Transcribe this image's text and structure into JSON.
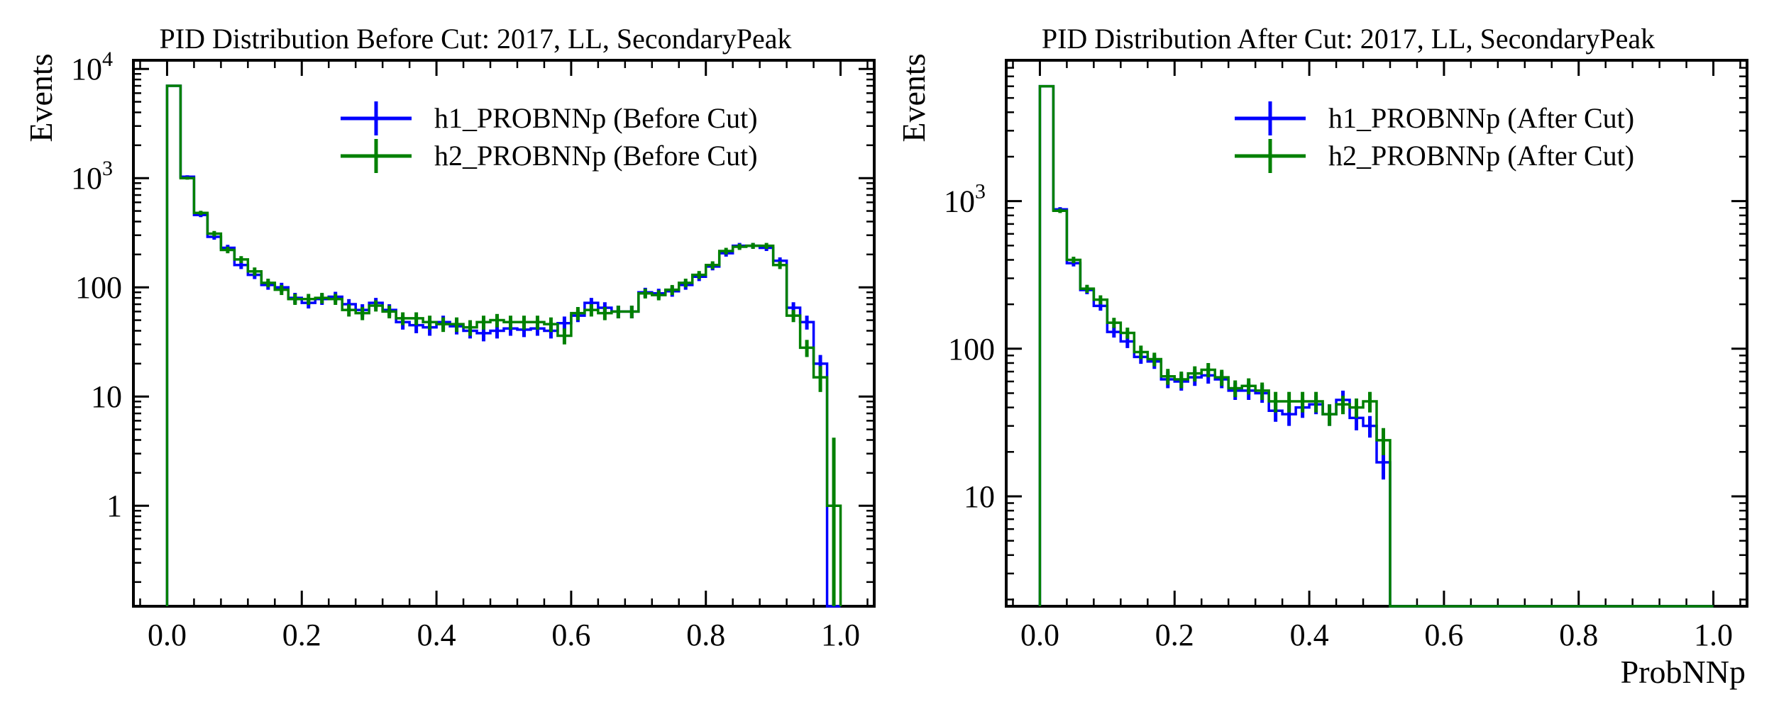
{
  "figure": {
    "panels": [
      "left",
      "right"
    ]
  },
  "colors": {
    "h1": "#0000ff",
    "h2": "#008000",
    "axes": "#000000"
  },
  "chart_data": [
    {
      "type": "line",
      "style": "step-histogram-with-errorbars",
      "title": "PID Distribution Before Cut: 2017, LL, SecondaryPeak",
      "xlabel": "",
      "ylabel": "Events",
      "xlim": [
        -0.05,
        1.05
      ],
      "ylim": [
        0.12,
        12000
      ],
      "yscale": "log",
      "x_ticks": [
        "0.0",
        "0.2",
        "0.4",
        "0.6",
        "0.8",
        "1.0"
      ],
      "y_ticks": [
        {
          "value": 1,
          "label": "1"
        },
        {
          "value": 10,
          "label": "10"
        },
        {
          "value": 100,
          "label": "100"
        },
        {
          "value": 1000,
          "label": "10",
          "exp": "3"
        },
        {
          "value": 10000,
          "label": "10",
          "exp": "4"
        }
      ],
      "legend": {
        "placement": "top-right",
        "entries": [
          "h1_PROBNNp (Before Cut)",
          "h2_PROBNNp (Before Cut)"
        ]
      },
      "bins": {
        "start": 0.0,
        "width": 0.02
      },
      "series": [
        {
          "name": "h1_PROBNNp (Before Cut)",
          "values": [
            7000,
            1030,
            460,
            290,
            230,
            160,
            130,
            105,
            100,
            80,
            72,
            78,
            82,
            70,
            62,
            72,
            62,
            48,
            45,
            43,
            48,
            44,
            40,
            38,
            40,
            42,
            41,
            42,
            40,
            47,
            55,
            72,
            65,
            60,
            60,
            90,
            88,
            92,
            105,
            125,
            155,
            205,
            240,
            240,
            230,
            175,
            65,
            48,
            20,
            0
          ],
          "errors": [
            84,
            32,
            21,
            17,
            15,
            13,
            11,
            10,
            10,
            9,
            8,
            9,
            9,
            8,
            8,
            8,
            8,
            7,
            7,
            7,
            7,
            7,
            6,
            6,
            6,
            6,
            6,
            6,
            6,
            7,
            7,
            8,
            8,
            8,
            8,
            9,
            9,
            10,
            10,
            11,
            12,
            14,
            15,
            15,
            15,
            13,
            8,
            7,
            4,
            0
          ]
        },
        {
          "name": "h2_PROBNNp (Before Cut)",
          "values": [
            7000,
            1000,
            480,
            310,
            220,
            180,
            140,
            110,
            95,
            78,
            78,
            80,
            78,
            62,
            58,
            68,
            60,
            52,
            52,
            48,
            46,
            46,
            43,
            48,
            50,
            48,
            48,
            48,
            46,
            36,
            58,
            62,
            58,
            60,
            60,
            88,
            85,
            95,
            110,
            130,
            160,
            215,
            235,
            240,
            240,
            160,
            55,
            28,
            15,
            1
          ],
          "errors": [
            84,
            32,
            22,
            18,
            15,
            13,
            12,
            10,
            10,
            9,
            9,
            9,
            9,
            8,
            8,
            8,
            8,
            7,
            7,
            7,
            7,
            7,
            7,
            7,
            7,
            7,
            7,
            7,
            7,
            6,
            8,
            8,
            8,
            8,
            8,
            9,
            9,
            10,
            10,
            11,
            13,
            15,
            15,
            15,
            15,
            13,
            7,
            5,
            4,
            3.2
          ]
        }
      ]
    },
    {
      "type": "line",
      "style": "step-histogram-with-errorbars",
      "title": "PID Distribution After Cut: 2017, LL, SecondaryPeak",
      "xlabel": "ProbNNp",
      "ylabel": "Events",
      "xlim": [
        -0.05,
        1.05
      ],
      "ylim": [
        1.8,
        9000
      ],
      "yscale": "log",
      "x_ticks": [
        "0.0",
        "0.2",
        "0.4",
        "0.6",
        "0.8",
        "1.0"
      ],
      "y_ticks": [
        {
          "value": 10,
          "label": "10"
        },
        {
          "value": 100,
          "label": "100"
        },
        {
          "value": 1000,
          "label": "10",
          "exp": "3"
        }
      ],
      "legend": {
        "placement": "top-right",
        "entries": [
          "h1_PROBNNp (After Cut)",
          "h2_PROBNNp (After Cut)"
        ]
      },
      "bins": {
        "start": 0.0,
        "width": 0.02
      },
      "series": [
        {
          "name": "h1_PROBNNp (After Cut)",
          "values": [
            6000,
            880,
            380,
            250,
            195,
            130,
            112,
            88,
            82,
            62,
            60,
            64,
            66,
            62,
            52,
            52,
            50,
            38,
            36,
            40,
            42,
            36,
            45,
            34,
            30,
            17,
            0,
            0,
            0,
            0,
            0,
            0,
            0,
            0,
            0,
            0,
            0,
            0,
            0,
            0,
            0,
            0,
            0,
            0,
            0,
            0,
            0,
            0,
            0,
            0
          ],
          "errors": [
            77,
            30,
            19,
            16,
            14,
            11,
            11,
            9,
            9,
            8,
            8,
            8,
            8,
            8,
            7,
            7,
            7,
            6,
            6,
            6,
            6,
            6,
            7,
            6,
            5,
            4,
            0,
            0,
            0,
            0,
            0,
            0,
            0,
            0,
            0,
            0,
            0,
            0,
            0,
            0,
            0,
            0,
            0,
            0,
            0,
            0,
            0,
            0,
            0,
            0
          ]
        },
        {
          "name": "h2_PROBNNp (After Cut)",
          "values": [
            6000,
            860,
            400,
            255,
            215,
            150,
            128,
            95,
            85,
            65,
            62,
            68,
            72,
            64,
            54,
            56,
            52,
            44,
            44,
            44,
            44,
            36,
            42,
            40,
            44,
            24,
            0,
            0,
            0,
            0,
            0,
            0,
            0,
            0,
            0,
            0,
            0,
            0,
            0,
            0,
            0,
            0,
            0,
            0,
            0,
            0,
            0,
            0,
            0,
            0
          ],
          "errors": [
            77,
            29,
            20,
            16,
            15,
            12,
            11,
            10,
            9,
            8,
            8,
            8,
            8,
            8,
            7,
            7,
            7,
            7,
            7,
            7,
            7,
            6,
            6,
            6,
            7,
            5,
            1.8,
            1.8,
            1.8,
            1.8,
            1.8,
            1.8,
            1.8,
            1.8,
            1.8,
            1.8,
            1.8,
            1.8,
            1.8,
            1.8,
            1.8,
            1.8,
            1.8,
            1.8,
            1.8,
            1.8,
            1.8,
            1.8,
            1.8,
            1.8
          ]
        }
      ]
    }
  ]
}
